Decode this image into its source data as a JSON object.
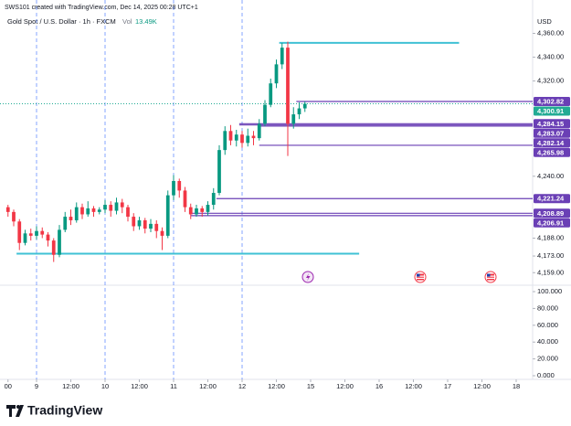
{
  "header": "SWS101 created with TradingView.com, Dec 14, 2025 00:28 UTC+1",
  "chart_data": {
    "type": "candlestick",
    "title": "Gold Spot / U.S. Dollar · 1h · FXCM",
    "volume_label": "Vol",
    "volume_value": "13.49K",
    "currency": "USD",
    "up_color": "#089981",
    "down_color": "#f23645",
    "x": [
      -10,
      -8,
      -6,
      -4,
      -2,
      0,
      2,
      4,
      6,
      8,
      10,
      12,
      14,
      16,
      18,
      20,
      22,
      24,
      26,
      28,
      30,
      32,
      34,
      36,
      38,
      40,
      42,
      44,
      46,
      48,
      50,
      52,
      54,
      56,
      58,
      60,
      62,
      64,
      66,
      68,
      70,
      72,
      74,
      76,
      78,
      80,
      82,
      84,
      86,
      88,
      90,
      92,
      94
    ],
    "ohlc": [
      [
        4214,
        4216,
        4206,
        4210
      ],
      [
        4210,
        4212,
        4198,
        4202
      ],
      [
        4202,
        4204,
        4178,
        4184
      ],
      [
        4184,
        4195,
        4182,
        4192
      ],
      [
        4192,
        4196,
        4186,
        4190
      ],
      [
        4190,
        4198,
        4187,
        4194
      ],
      [
        4194,
        4197,
        4188,
        4191
      ],
      [
        4191,
        4193,
        4181,
        4186
      ],
      [
        4186,
        4188,
        4168,
        4174
      ],
      [
        4174,
        4199,
        4172,
        4195
      ],
      [
        4195,
        4210,
        4193,
        4206
      ],
      [
        4206,
        4212,
        4199,
        4203
      ],
      [
        4203,
        4218,
        4201,
        4214
      ],
      [
        4214,
        4217,
        4204,
        4208
      ],
      [
        4208,
        4219,
        4206,
        4213
      ],
      [
        4213,
        4215,
        4206,
        4210
      ],
      [
        4210,
        4214,
        4208,
        4212
      ],
      [
        4212,
        4220,
        4209,
        4216
      ],
      [
        4216,
        4219,
        4206,
        4211
      ],
      [
        4211,
        4222,
        4208,
        4218
      ],
      [
        4218,
        4221,
        4209,
        4214
      ],
      [
        4214,
        4216,
        4202,
        4206
      ],
      [
        4206,
        4209,
        4194,
        4198
      ],
      [
        4198,
        4206,
        4195,
        4203
      ],
      [
        4203,
        4205,
        4192,
        4196
      ],
      [
        4196,
        4204,
        4193,
        4200
      ],
      [
        4200,
        4203,
        4188,
        4194
      ],
      [
        4194,
        4197,
        4178,
        4190
      ],
      [
        4190,
        4228,
        4188,
        4224
      ],
      [
        4224,
        4241,
        4220,
        4236
      ],
      [
        4236,
        4238,
        4222,
        4228
      ],
      [
        4228,
        4231,
        4210,
        4214
      ],
      [
        4214,
        4217,
        4204,
        4208
      ],
      [
        4208,
        4216,
        4206,
        4213
      ],
      [
        4213,
        4215,
        4206,
        4210
      ],
      [
        4210,
        4219,
        4207,
        4216
      ],
      [
        4216,
        4230,
        4212,
        4226
      ],
      [
        4226,
        4266,
        4224,
        4262
      ],
      [
        4262,
        4282,
        4258,
        4278
      ],
      [
        4278,
        4283,
        4266,
        4270
      ],
      [
        4270,
        4279,
        4265,
        4275
      ],
      [
        4275,
        4278,
        4264,
        4268
      ],
      [
        4268,
        4280,
        4265,
        4274
      ],
      [
        4274,
        4278,
        4266,
        4272
      ],
      [
        4272,
        4288,
        4270,
        4284
      ],
      [
        4284,
        4304,
        4282,
        4300
      ],
      [
        4300,
        4322,
        4298,
        4318
      ],
      [
        4318,
        4338,
        4314,
        4334
      ],
      [
        4334,
        4352,
        4330,
        4348
      ],
      [
        4348,
        4353,
        4257,
        4284
      ],
      [
        4284,
        4298,
        4280,
        4292
      ],
      [
        4292,
        4302,
        4288,
        4297
      ],
      [
        4297,
        4302.82,
        4294,
        4300.91
      ]
    ],
    "xlim": [
      -12.8,
      173.76
    ],
    "ylim": [
      4150,
      4365
    ],
    "yticks": [
      {
        "value": 4360,
        "label": "4,360.00"
      },
      {
        "value": 4340,
        "label": "4,340.00"
      },
      {
        "value": 4320,
        "label": "4,320.00"
      },
      {
        "value": 4240,
        "label": "4,240.00"
      },
      {
        "value": 4188,
        "label": "4,188.00"
      },
      {
        "value": 4173,
        "label": "4,173.00"
      },
      {
        "value": 4159,
        "label": "4,159.00"
      }
    ],
    "xticks": [
      {
        "value": -10,
        "label": "00"
      },
      {
        "value": 0,
        "label": "9"
      },
      {
        "value": 12,
        "label": "12:00"
      },
      {
        "value": 24,
        "label": "10"
      },
      {
        "value": 36,
        "label": "12:00"
      },
      {
        "value": 48,
        "label": "11"
      },
      {
        "value": 60,
        "label": "12:00"
      },
      {
        "value": 72,
        "label": "12"
      },
      {
        "value": 84,
        "label": "12:00"
      },
      {
        "value": 96,
        "label": "15"
      },
      {
        "value": 108,
        "label": "12:00"
      },
      {
        "value": 120,
        "label": "16"
      },
      {
        "value": 132,
        "label": "12:00"
      },
      {
        "value": 144,
        "label": "17"
      },
      {
        "value": 156,
        "label": "12:00"
      },
      {
        "value": 168,
        "label": "18"
      }
    ],
    "session_breaks": [
      0,
      24,
      48,
      72
    ],
    "last_price": {
      "value": 4300.91,
      "label": "4,300.91",
      "color": "#22ab94"
    },
    "level_color": "#6a3fb5",
    "levels": [
      {
        "value": 4302.82,
        "label": "4,302.82",
        "start": 91
      },
      {
        "value": 4284.15,
        "label": "4,284.15",
        "start": 71
      },
      {
        "value": 4283.07,
        "label": "4,283.07",
        "start": 71
      },
      {
        "value": 4282.14,
        "label": "4,282.14",
        "start": 78
      },
      {
        "value": 4265.98,
        "label": "4,265.98",
        "start": 78
      },
      {
        "value": 4221.24,
        "label": "4,221.24",
        "start": 63
      },
      {
        "value": 4208.89,
        "label": "4,208.89",
        "start": 54
      },
      {
        "value": 4206.91,
        "label": "4,206.91",
        "start": 54
      }
    ],
    "trend_lines": [
      {
        "value": 4352,
        "start": 85,
        "end": 148,
        "color": "#3fc1d4"
      },
      {
        "value": 4175,
        "start": -7,
        "end": 113,
        "color": "#3fc1d4"
      }
    ],
    "volume": {
      "ylim": [
        0,
        100
      ],
      "yticks": [
        {
          "value": 100,
          "label": "100.000"
        },
        {
          "value": 80,
          "label": "80.000"
        },
        {
          "value": 60,
          "label": "60.000"
        },
        {
          "value": 40,
          "label": "40.000"
        },
        {
          "value": 20,
          "label": "20.000"
        },
        {
          "value": 0,
          "label": "0.000"
        }
      ]
    }
  },
  "footer": "TradingView"
}
